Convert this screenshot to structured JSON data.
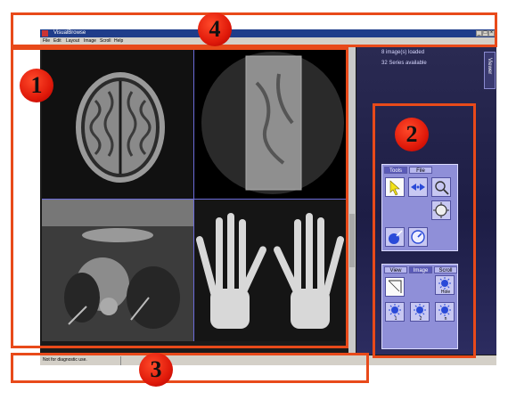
{
  "window": {
    "title": "VisualBrowse",
    "menu": [
      "File",
      "Edit",
      "Layout",
      "Image",
      "Scroll",
      "Help"
    ]
  },
  "right_panel": {
    "info_lines": [
      "8 image(s) loaded",
      "32 Series available"
    ],
    "viewer_tab": "Viewer",
    "tools_palette": {
      "tabs": [
        "Tools",
        "File"
      ],
      "active_tab": "Tools"
    },
    "view_palette": {
      "tabs": [
        "View",
        "Image",
        "Scroll"
      ],
      "active_tab": "Image",
      "buttons": [
        {
          "icon": "zoom-frame-icon",
          "label": ""
        },
        {
          "icon": "scroll-sun-icon",
          "label": "Hole"
        },
        {
          "icon": "scroll-sun-icon",
          "label": "1"
        },
        {
          "icon": "scroll-sun-icon",
          "label": "2"
        },
        {
          "icon": "scroll-sun-icon",
          "label": "n"
        }
      ]
    }
  },
  "statusbar": {
    "text": "Not for diagnostic use."
  },
  "annotations": [
    "1",
    "2",
    "3",
    "4"
  ],
  "colors": {
    "annotation": "#e84a1a",
    "panel": "#1d1d45",
    "palette": "#8f8fd8",
    "titlebar": "#1f3d8a"
  }
}
